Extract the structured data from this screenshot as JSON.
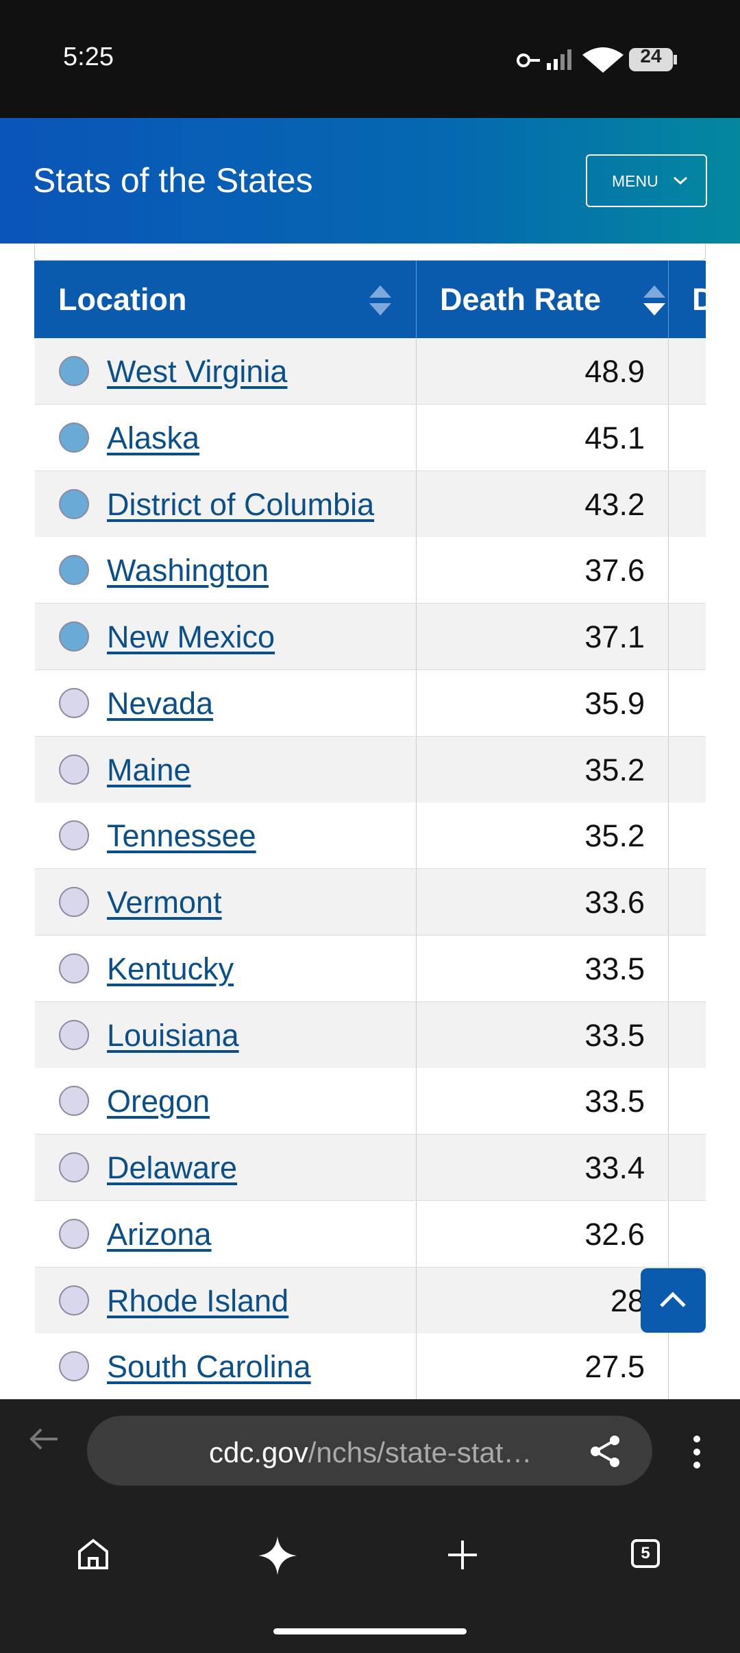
{
  "status_bar": {
    "time": "5:25",
    "battery": "24"
  },
  "header": {
    "title": "Stats of the States",
    "menu": "MENU"
  },
  "table": {
    "columns": [
      "Location",
      "Death Rate",
      "D"
    ],
    "rows": [
      {
        "location": "West Virginia",
        "rate": "48.9",
        "dot_color": "#6aaad6"
      },
      {
        "location": "Alaska",
        "rate": "45.1",
        "dot_color": "#6aaad6"
      },
      {
        "location": "District of Columbia",
        "rate": "43.2",
        "dot_color": "#6aaad6"
      },
      {
        "location": "Washington",
        "rate": "37.6",
        "dot_color": "#6aaad6"
      },
      {
        "location": "New Mexico",
        "rate": "37.1",
        "dot_color": "#6aaad6"
      },
      {
        "location": "Nevada",
        "rate": "35.9",
        "dot_color": "#d9d7ec"
      },
      {
        "location": "Maine",
        "rate": "35.2",
        "dot_color": "#d9d7ec"
      },
      {
        "location": "Tennessee",
        "rate": "35.2",
        "dot_color": "#d9d7ec"
      },
      {
        "location": "Vermont",
        "rate": "33.6",
        "dot_color": "#d9d7ec"
      },
      {
        "location": "Kentucky",
        "rate": "33.5",
        "dot_color": "#d9d7ec"
      },
      {
        "location": "Louisiana",
        "rate": "33.5",
        "dot_color": "#d9d7ec"
      },
      {
        "location": "Oregon",
        "rate": "33.5",
        "dot_color": "#d9d7ec"
      },
      {
        "location": "Delaware",
        "rate": "33.4",
        "dot_color": "#d9d7ec"
      },
      {
        "location": "Arizona",
        "rate": "32.6",
        "dot_color": "#d9d7ec"
      },
      {
        "location": "Rhode Island",
        "rate": "28",
        "dot_color": "#d9d7ec"
      },
      {
        "location": "South Carolina",
        "rate": "27.5",
        "dot_color": "#d9d7ec"
      }
    ]
  },
  "browser": {
    "url_domain": "cdc.gov",
    "url_path": "/nchs/state-stat…",
    "tab_count": "5"
  }
}
